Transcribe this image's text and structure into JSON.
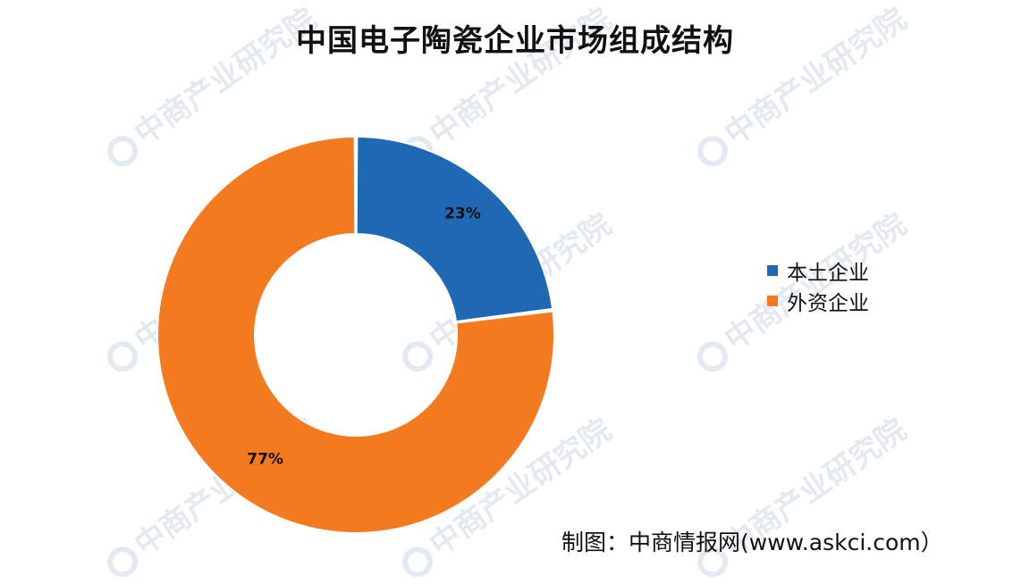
{
  "title": "中国电子陶瓷企业市场组成结构",
  "watermark_text": "中商产业研究院",
  "credit": "制图：中商情报网(www.askci.com）",
  "colors": {
    "local": "#1f69b4",
    "foreign": "#f47a20",
    "watermark": "#dfe6ee"
  },
  "chart_data": {
    "type": "pie",
    "donut": true,
    "title": "中国电子陶瓷企业市场组成结构",
    "categories": [
      "本土企业",
      "外资企业"
    ],
    "values": [
      23,
      77
    ],
    "value_labels": [
      "23%",
      "77%"
    ],
    "legend_position": "right",
    "start_angle_deg": 0,
    "direction": "clockwise"
  }
}
